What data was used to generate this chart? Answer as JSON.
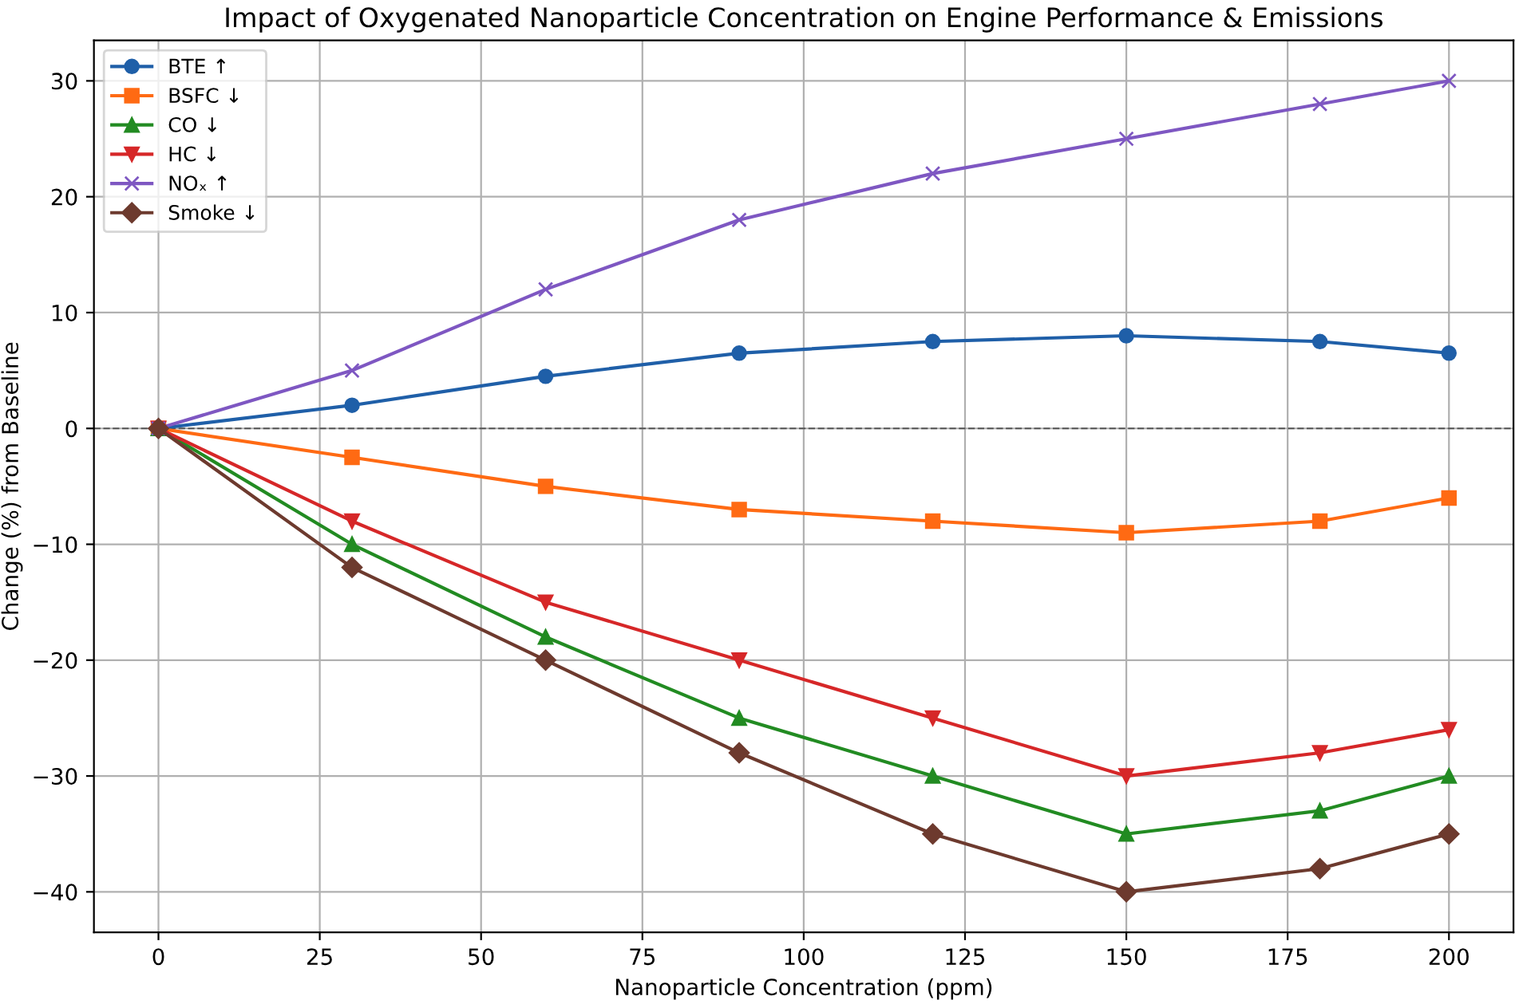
{
  "chart_data": {
    "type": "line",
    "title": "Impact of Oxygenated Nanoparticle Concentration on Engine Performance & Emissions",
    "xlabel": "Nanoparticle Concentration (ppm)",
    "ylabel": "Change (%) from Baseline",
    "x": [
      0,
      30,
      60,
      90,
      120,
      150,
      180,
      200
    ],
    "series": [
      {
        "name": "BTE ↑",
        "color": "#1f5fa8",
        "marker": "circle",
        "values": [
          0,
          2,
          4.5,
          6.5,
          7.5,
          8,
          7.5,
          6.5
        ]
      },
      {
        "name": "BSFC ↓",
        "color": "#ff6a13",
        "marker": "square",
        "values": [
          0,
          -2.5,
          -5,
          -7,
          -8,
          -9,
          -8,
          -6
        ]
      },
      {
        "name": "CO ↓",
        "color": "#228b22",
        "marker": "triangle",
        "values": [
          0,
          -10,
          -18,
          -25,
          -30,
          -35,
          -33,
          -30
        ]
      },
      {
        "name": "HC ↓",
        "color": "#d62728",
        "marker": "triangle_down",
        "values": [
          0,
          -8,
          -15,
          -20,
          -25,
          -30,
          -28,
          -26
        ]
      },
      {
        "name": "NOₓ ↑",
        "color": "#7e57c2",
        "marker": "cross",
        "values": [
          0,
          5,
          12,
          18,
          22,
          25,
          28,
          30
        ]
      },
      {
        "name": "Smoke ↓",
        "color": "#6d3a2e",
        "marker": "diamond",
        "values": [
          0,
          -12,
          -20,
          -28,
          -35,
          -40,
          -38,
          -35
        ]
      }
    ],
    "xlim": [
      -10,
      210
    ],
    "xticks": [
      0,
      25,
      50,
      75,
      100,
      125,
      150,
      175,
      200
    ],
    "ylim": [
      -43.5,
      33.5
    ],
    "yticks": [
      {
        "value": -40,
        "label": "−40"
      },
      {
        "value": -30,
        "label": "−30"
      },
      {
        "value": -20,
        "label": "−20"
      },
      {
        "value": -10,
        "label": "−10"
      },
      0,
      10,
      20,
      30
    ],
    "ref_lines": [
      {
        "axis": "y",
        "value": 0,
        "color": "#555555",
        "line_style": "dashed"
      }
    ],
    "grid": true,
    "legend": "top left",
    "line_style": "solid"
  }
}
